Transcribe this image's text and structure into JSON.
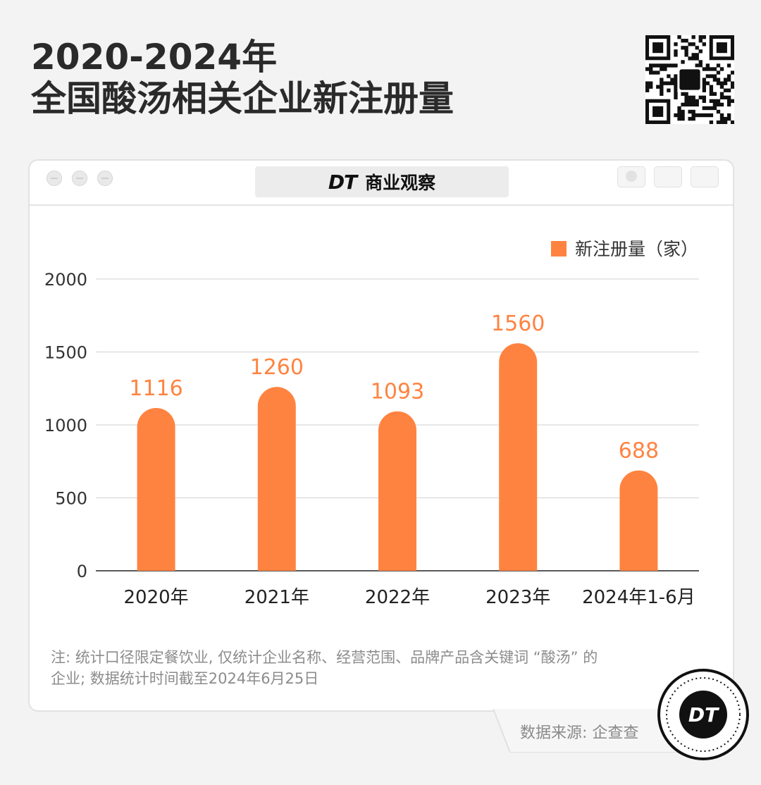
{
  "header": {
    "title_line1": "2020-2024年",
    "title_line2": "全国酸汤相关企业新注册量"
  },
  "brand_bar": {
    "logo": "DT",
    "name": "商业观察"
  },
  "badge": {
    "logo": "DT"
  },
  "chart_data": {
    "type": "bar",
    "categories": [
      "2020年",
      "2021年",
      "2022年",
      "2023年",
      "2024年1-6月"
    ],
    "series": [
      {
        "name": "新注册量（家）",
        "values": [
          1116,
          1260,
          1093,
          1560,
          688
        ]
      }
    ],
    "data_labels": [
      "1116",
      "1260",
      "1093",
      "1560",
      "688"
    ],
    "yticks": [
      "0",
      "500",
      "1000",
      "1500",
      "2000"
    ],
    "ylim": [
      0,
      2000
    ],
    "grid": true,
    "legend_position": "top-right",
    "bar_color": "#ff8340"
  },
  "footnote": {
    "line1": "注: 统计口径限定餐饮业, 仅统计企业名称、经营范围、品牌产品含关键词 “酸汤” 的",
    "line2": "企业; 数据统计时间截至2024年6月25日"
  },
  "source": "数据来源: 企查查",
  "icons": {
    "qr": "qr-code-icon",
    "window_close": "window-close-icon",
    "window_minimize": "window-minimize-icon",
    "window_maximize": "window-maximize-icon",
    "record": "record-icon",
    "share": "share-icon",
    "copy": "copy-icon"
  }
}
